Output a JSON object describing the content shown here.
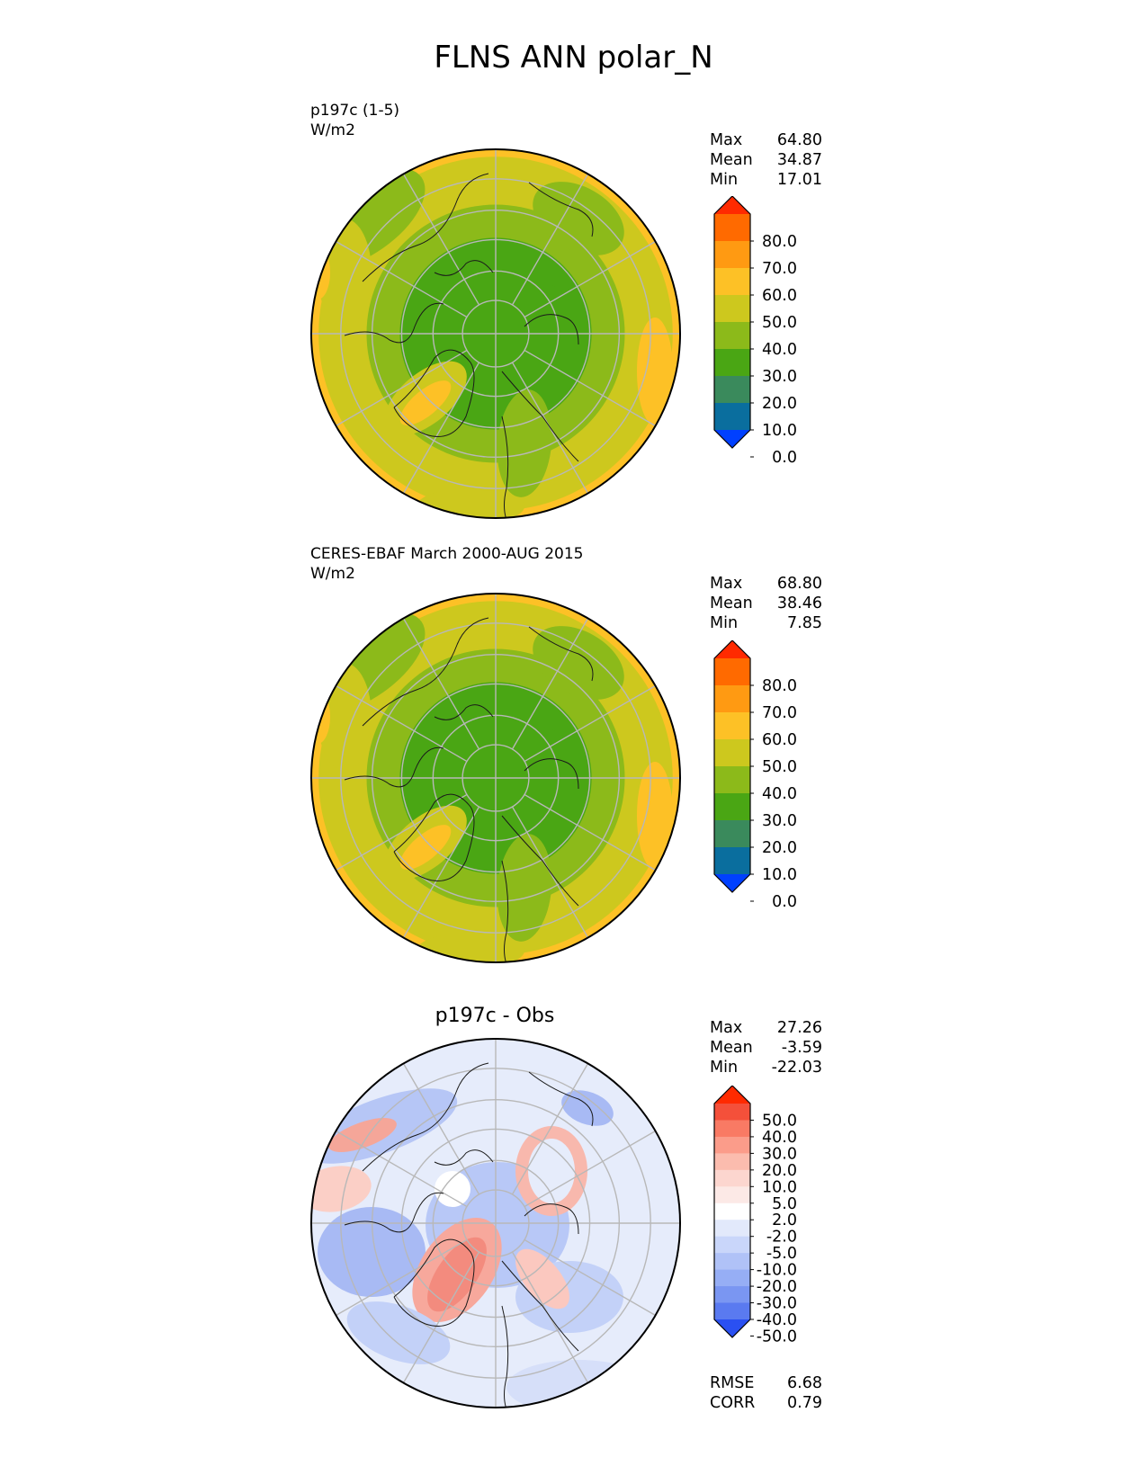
{
  "title": "FLNS ANN polar_N",
  "panels": [
    {
      "id": "test",
      "label1": "p197c (1-5)",
      "label2": "W/m2",
      "center_title": "",
      "stats": [
        {
          "name": "Max",
          "value": "64.80"
        },
        {
          "name": "Mean",
          "value": "34.87"
        },
        {
          "name": "Min",
          "value": "17.01"
        }
      ],
      "colorbar": {
        "ticks": [
          "80.0",
          "70.0",
          "60.0",
          "50.0",
          "40.0",
          "30.0",
          "20.0",
          "10.0",
          "0.0"
        ],
        "colors": [
          "#ff2a00",
          "#ff6a00",
          "#ff9a12",
          "#fdc126",
          "#cdc81e",
          "#8cba1a",
          "#4aa614",
          "#3a8a5c",
          "#0a6e9e",
          "#0040ff"
        ]
      }
    },
    {
      "id": "ref",
      "label1": "CERES-EBAF March 2000-AUG 2015",
      "label2": "W/m2",
      "center_title": "",
      "stats": [
        {
          "name": "Max",
          "value": "68.80"
        },
        {
          "name": "Mean",
          "value": "38.46"
        },
        {
          "name": "Min",
          "value": "7.85"
        }
      ],
      "colorbar": {
        "ticks": [
          "80.0",
          "70.0",
          "60.0",
          "50.0",
          "40.0",
          "30.0",
          "20.0",
          "10.0",
          "0.0"
        ],
        "colors": [
          "#ff2a00",
          "#ff6a00",
          "#ff9a12",
          "#fdc126",
          "#cdc81e",
          "#8cba1a",
          "#4aa614",
          "#3a8a5c",
          "#0a6e9e",
          "#0040ff"
        ]
      }
    },
    {
      "id": "diff",
      "label1": "",
      "label2": "",
      "center_title": "p197c - Obs",
      "stats": [
        {
          "name": "Max",
          "value": "27.26"
        },
        {
          "name": "Mean",
          "value": "-3.59"
        },
        {
          "name": "Min",
          "value": "-22.03"
        }
      ],
      "extra_stats": [
        {
          "name": "RMSE",
          "value": "6.68"
        },
        {
          "name": "CORR",
          "value": "0.79"
        }
      ],
      "colorbar": {
        "ticks": [
          "50.0",
          "40.0",
          "30.0",
          "20.0",
          "10.0",
          "5.0",
          "2.0",
          "-2.0",
          "-5.0",
          "-10.0",
          "-20.0",
          "-30.0",
          "-40.0",
          "-50.0"
        ],
        "colors": [
          "#ff2a00",
          "#f4503a",
          "#f97a64",
          "#fb9c8a",
          "#fbbcae",
          "#fcd6cf",
          "#fce9e6",
          "#ffffff",
          "#e2e9fb",
          "#c9d6fa",
          "#b0c2f7",
          "#96aef5",
          "#7a96f2",
          "#5a7af0",
          "#2a50f2"
        ]
      }
    }
  ]
}
